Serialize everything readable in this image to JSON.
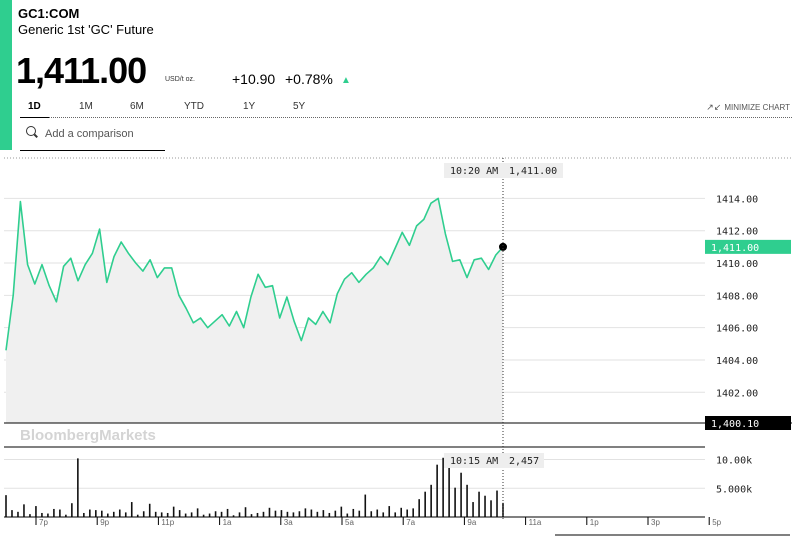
{
  "header": {
    "ticker": "GC1:COM",
    "name": "Generic 1st 'GC' Future",
    "price": "1,411.00",
    "unit": "USD/t oz.",
    "change": "+10.90",
    "change_pct": "+0.78%"
  },
  "tabs": [
    "1D",
    "1M",
    "6M",
    "YTD",
    "1Y",
    "5Y"
  ],
  "active_tab": "1D",
  "minimize_label": "MINIMIZE CHART",
  "search": {
    "placeholder": "Add a comparison"
  },
  "watermark": "BloombergMarkets",
  "colors": {
    "accent": "#2fce8f",
    "line": "#2fce8f",
    "area": "#f0f0f0",
    "text": "#000000"
  },
  "chart_data": [
    {
      "type": "area",
      "y_ticks": [
        "1414.00",
        "1412.00",
        "1410.00",
        "1408.00",
        "1406.00",
        "1404.00",
        "1402.00"
      ],
      "ylim": [
        1400.1,
        1416.5
      ],
      "x_ticks": [
        "7p",
        "9p",
        "11p",
        "1a",
        "3a",
        "5a",
        "7a",
        "9a",
        "11a",
        "1p",
        "3p",
        "5p"
      ],
      "current_value_label": "1,411.00",
      "baseline_label": "1,400.10",
      "tooltip": {
        "time": "10:20 AM",
        "value": "1,411.00"
      },
      "grid": true,
      "values": [
        1404.6,
        1408.0,
        1413.8,
        1409.9,
        1408.7,
        1409.9,
        1408.6,
        1407.6,
        1409.8,
        1410.3,
        1408.9,
        1409.9,
        1410.6,
        1412.1,
        1408.8,
        1410.4,
        1411.3,
        1410.6,
        1410.0,
        1409.5,
        1410.2,
        1409.1,
        1409.7,
        1409.7,
        1408.0,
        1407.2,
        1406.3,
        1406.6,
        1406.0,
        1406.4,
        1406.8,
        1406.1,
        1407.0,
        1406.0,
        1407.9,
        1409.3,
        1408.5,
        1408.6,
        1406.6,
        1407.9,
        1406.4,
        1405.2,
        1406.6,
        1406.2,
        1407.0,
        1406.3,
        1408.1,
        1409.0,
        1409.4,
        1408.8,
        1409.3,
        1409.7,
        1410.4,
        1409.9,
        1410.9,
        1411.9,
        1411.1,
        1412.3,
        1412.7,
        1413.7,
        1414.0,
        1411.8,
        1410.1,
        1410.2,
        1409.1,
        1410.2,
        1410.3,
        1409.6,
        1410.5,
        1411.0
      ]
    },
    {
      "type": "bar",
      "y_ticks": [
        "10.00k",
        "5.000k"
      ],
      "ylim": [
        0,
        12000
      ],
      "tooltip": {
        "time": "10:15 AM",
        "value": "2,457"
      },
      "values": [
        3800,
        1200,
        900,
        2200,
        500,
        1900,
        700,
        600,
        1400,
        1300,
        400,
        2400,
        10200,
        700,
        1300,
        1200,
        1100,
        600,
        900,
        1300,
        800,
        2600,
        400,
        1000,
        2300,
        900,
        800,
        700,
        1800,
        1200,
        600,
        800,
        1500,
        400,
        600,
        1000,
        900,
        1400,
        300,
        800,
        1700,
        500,
        700,
        900,
        1600,
        1100,
        1200,
        900,
        800,
        1000,
        1500,
        1300,
        900,
        1200,
        700,
        1100,
        1800,
        600,
        1400,
        1100,
        3900,
        1000,
        1300,
        800,
        1900,
        800,
        1600,
        1300,
        1500,
        3100,
        4400,
        5600,
        9100,
        10300,
        9000,
        5100,
        7700,
        5600,
        2600,
        4400,
        3700,
        2900,
        4600,
        2457
      ]
    }
  ]
}
